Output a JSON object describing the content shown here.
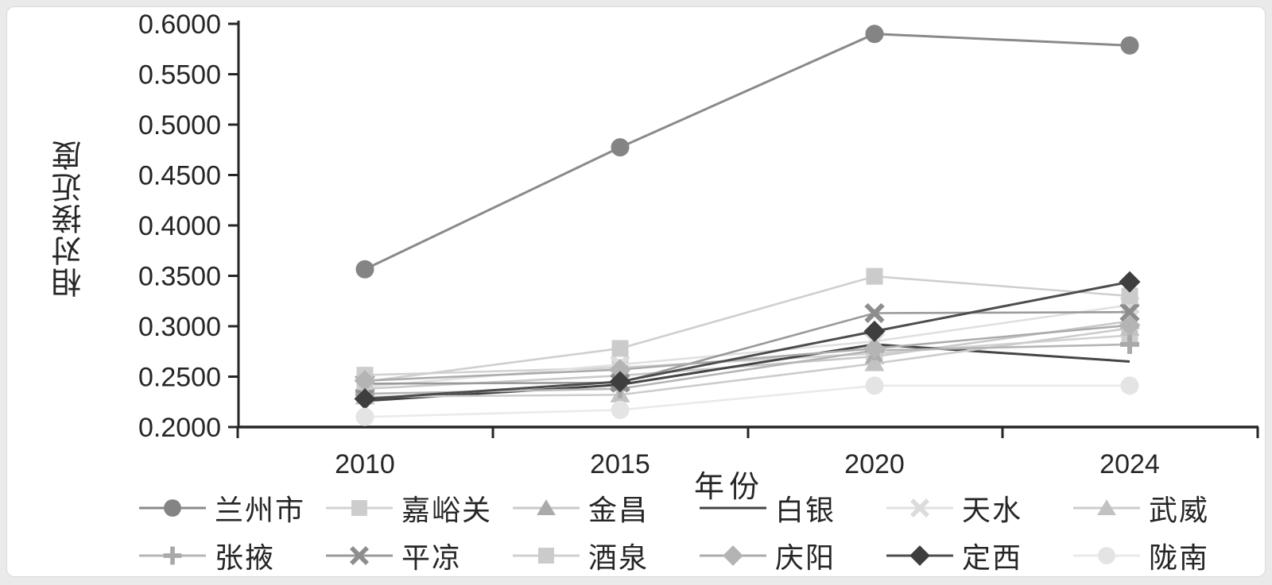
{
  "chart_data": {
    "type": "line",
    "title": "",
    "xlabel": "年份",
    "ylabel": "相对接近度",
    "categories": [
      "2010",
      "2015",
      "2020",
      "2024"
    ],
    "y_axis": {
      "min": 0.2,
      "max": 0.6,
      "step": 0.05,
      "decimals": 4
    },
    "grid": false,
    "legend_position": "bottom",
    "series": [
      {
        "name": "兰州市",
        "marker": "circle",
        "color": "#848484",
        "line_color": "#8a8a8a",
        "values": [
          0.3565,
          0.4775,
          0.59,
          0.5785
        ]
      },
      {
        "name": "嘉峪关",
        "marker": "square",
        "color": "#cdcdcd",
        "line_color": "#d2d2d2",
        "values": [
          0.2515,
          0.259,
          0.273,
          0.291
        ]
      },
      {
        "name": "金昌",
        "marker": "triangle",
        "color": "#aaaaaa",
        "line_color": "#c9c9c9",
        "values": [
          0.238,
          0.251,
          0.27,
          0.305
        ]
      },
      {
        "name": "白银",
        "marker": "none",
        "color": "#454545",
        "line_color": "#454545",
        "values": [
          0.226,
          0.242,
          0.282,
          0.265
        ]
      },
      {
        "name": "天水",
        "marker": "x",
        "color": "#dcdcdc",
        "line_color": "#e0e0e0",
        "values": [
          0.24,
          0.262,
          0.285,
          0.321
        ]
      },
      {
        "name": "武威",
        "marker": "triangle",
        "color": "#c2c2c2",
        "line_color": "#cccccc",
        "values": [
          0.23,
          0.232,
          0.263,
          0.298
        ]
      },
      {
        "name": "张掖",
        "marker": "plus",
        "color": "#a9a9a9",
        "line_color": "#b5b5b5",
        "values": [
          0.233,
          0.238,
          0.276,
          0.282
        ]
      },
      {
        "name": "平凉",
        "marker": "x",
        "color": "#8d8d8d",
        "line_color": "#9a9a9a",
        "values": [
          0.243,
          0.244,
          0.313,
          0.314
        ]
      },
      {
        "name": "酒泉",
        "marker": "square",
        "color": "#cbcbcb",
        "line_color": "#cfcfcf",
        "values": [
          0.245,
          0.278,
          0.3495,
          0.33
        ]
      },
      {
        "name": "庆阳",
        "marker": "diamond",
        "color": "#b4b4b4",
        "line_color": "#ababab",
        "values": [
          0.246,
          0.257,
          0.278,
          0.301
        ]
      },
      {
        "name": "定西",
        "marker": "diamond",
        "color": "#3e3e3e",
        "line_color": "#4d4d4d",
        "values": [
          0.228,
          0.245,
          0.295,
          0.344
        ]
      },
      {
        "name": "陇南",
        "marker": "circle",
        "color": "#e4e4e4",
        "line_color": "#eaeaea",
        "values": [
          0.21,
          0.217,
          0.241,
          0.241
        ]
      }
    ]
  }
}
